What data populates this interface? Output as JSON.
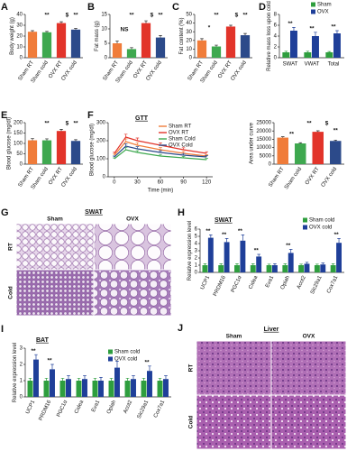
{
  "chart_data": [
    {
      "type": "bar",
      "label": "A",
      "ylabel": "Body weight (g)",
      "categories": [
        "Sham RT",
        "Sham cold",
        "OVX RT",
        "OVX cold"
      ],
      "values": [
        24,
        23.5,
        32,
        26
      ],
      "errors": [
        1,
        0.8,
        1.2,
        1
      ],
      "colors": [
        "#f07c3a",
        "#3ea84f",
        "#e2342a",
        "#2c4a8a"
      ],
      "ylim": [
        0,
        40
      ],
      "yticks": [
        0,
        10,
        20,
        30,
        40
      ],
      "annotations": [
        "**",
        "$",
        "**"
      ]
    },
    {
      "type": "bar",
      "label": "B",
      "ylabel": "Fat mass (g)",
      "categories": [
        "Sham RT",
        "Sham cold",
        "OVX RT",
        "OVX cold"
      ],
      "values": [
        5,
        3,
        12,
        7
      ],
      "errors": [
        0.8,
        0.5,
        0.8,
        0.7
      ],
      "colors": [
        "#f07c3a",
        "#3ea84f",
        "#e2342a",
        "#2c4a8a"
      ],
      "ylim": [
        0,
        15
      ],
      "yticks": [
        0,
        5,
        10,
        15
      ],
      "annotations": [
        "NS",
        "**",
        "$",
        "**"
      ]
    },
    {
      "type": "bar",
      "label": "C",
      "ylabel": "Fat content (%)",
      "categories": [
        "Sham RT",
        "Sham cold",
        "OVX RT",
        "OVX cold"
      ],
      "values": [
        20,
        13,
        36,
        26
      ],
      "errors": [
        2,
        1.5,
        1.5,
        2
      ],
      "colors": [
        "#f07c3a",
        "#3ea84f",
        "#e2342a",
        "#2c4a8a"
      ],
      "ylim": [
        0,
        50
      ],
      "yticks": [
        0,
        10,
        20,
        30,
        40,
        50
      ],
      "annotations": [
        "*",
        "**",
        "$",
        "**"
      ]
    },
    {
      "type": "grouped_bar",
      "label": "D",
      "ylabel": "Relative mass loss upon cold",
      "categories": [
        "SWAT",
        "VWAT",
        "Total"
      ],
      "series": [
        {
          "name": "Sham",
          "color": "#2e9e3e",
          "values": [
            1,
            1,
            1
          ],
          "errors": [
            0.2,
            0.2,
            0.15
          ]
        },
        {
          "name": "OVX",
          "color": "#1f3f99",
          "values": [
            5,
            4,
            4.5
          ],
          "errors": [
            0.6,
            0.7,
            0.5
          ]
        }
      ],
      "ylim": [
        0,
        8
      ],
      "yticks": [
        0,
        2,
        4,
        6,
        8
      ],
      "annotations": [
        "**",
        "**",
        "**"
      ],
      "legend": "upper right"
    },
    {
      "type": "bar",
      "label": "E",
      "ylabel": "Blood glucose (mg/dl)",
      "categories": [
        "Sham RT",
        "Sham cold",
        "OVX RT",
        "OVX cold"
      ],
      "values": [
        115,
        115,
        160,
        112
      ],
      "errors": [
        8,
        7,
        8,
        6
      ],
      "colors": [
        "#f07c3a",
        "#3ea84f",
        "#e2342a",
        "#2c4a8a"
      ],
      "ylim": [
        0,
        200
      ],
      "yticks": [
        0,
        50,
        100,
        150,
        200
      ],
      "annotations": [
        "**",
        "$",
        "**"
      ]
    },
    {
      "type": "line",
      "label": "F",
      "title": "GTT",
      "xlabel": "Time (min)",
      "ylabel": "Blood glucose (mg/dl)",
      "x": [
        0,
        15,
        30,
        60,
        90,
        120
      ],
      "xlim": [
        -8,
        128
      ],
      "xticks": [
        0,
        30,
        60,
        90,
        120
      ],
      "ylim": [
        0,
        300
      ],
      "yticks": [
        0,
        100,
        200,
        300
      ],
      "legend": "upper right",
      "series": [
        {
          "name": "Sham RT",
          "color": "#f07c3a",
          "values": [
            120,
            195,
            175,
            150,
            130,
            115
          ],
          "errors": [
            6,
            15,
            14,
            12,
            10,
            8
          ]
        },
        {
          "name": "OVX RT",
          "color": "#e2342a",
          "values": [
            130,
            220,
            200,
            175,
            150,
            130
          ],
          "errors": [
            6,
            16,
            15,
            13,
            11,
            9
          ]
        },
        {
          "name": "Sham Cold",
          "color": "#3ea84f",
          "values": [
            100,
            150,
            135,
            115,
            105,
            95
          ],
          "errors": [
            5,
            12,
            10,
            9,
            8,
            7
          ]
        },
        {
          "name": "OVX Cold",
          "color": "#2c4a8a",
          "values": [
            110,
            170,
            155,
            135,
            120,
            110
          ],
          "errors": [
            5,
            13,
            12,
            10,
            9,
            8
          ]
        }
      ]
    },
    {
      "type": "bar",
      "ylabel": "Area under curve",
      "categories": [
        "Sham RT",
        "Sham cold",
        "OVX RT",
        "OVX cold"
      ],
      "values": [
        16000,
        12500,
        19500,
        14000
      ],
      "errors": [
        500,
        400,
        600,
        500
      ],
      "colors": [
        "#f07c3a",
        "#3ea84f",
        "#e2342a",
        "#2c4a8a"
      ],
      "ylim": [
        0,
        25000
      ],
      "yticks": [
        0,
        5000,
        10000,
        15000,
        20000,
        25000
      ],
      "annotations": [
        "**",
        "**",
        "$",
        "**"
      ]
    },
    {
      "type": "grouped_bar",
      "label": "H",
      "title": "SWAT",
      "ylabel": "Relative expression level",
      "categories": [
        "UCP1",
        "PRDM16",
        "PGC1α",
        "Cidea",
        "Eva1",
        "Oplah",
        "Acot2",
        "Slc29a1",
        "Cox7a1"
      ],
      "series": [
        {
          "name": "Sham cold",
          "color": "#2e9e3e",
          "values": [
            1,
            1,
            1,
            1,
            1,
            1,
            1,
            1,
            1
          ],
          "errors": [
            0.2,
            0.2,
            0.2,
            0.2,
            0.15,
            0.2,
            0.15,
            0.15,
            0.2
          ]
        },
        {
          "name": "OVX cold",
          "color": "#1f3f99",
          "values": [
            4.8,
            4.2,
            4.4,
            2.2,
            1,
            2.7,
            1.2,
            1.1,
            4.1
          ],
          "errors": [
            0.4,
            0.5,
            0.8,
            0.3,
            0.2,
            0.5,
            0.2,
            0.2,
            0.6
          ]
        }
      ],
      "ylim": [
        0,
        6
      ],
      "yticks": [
        0,
        1,
        2,
        3,
        4,
        5,
        6
      ],
      "annotations": [
        "**",
        "**",
        "**",
        "**",
        "**",
        "**"
      ],
      "legend": "upper right"
    },
    {
      "type": "grouped_bar",
      "label": "I",
      "title": "BAT",
      "ylabel": "Relative expression level",
      "categories": [
        "UCP1",
        "PRDM16",
        "PGC1α",
        "Cidea",
        "Eva1",
        "Oplah",
        "Acot2",
        "Slc29a1",
        "Cox7a1"
      ],
      "series": [
        {
          "name": "Sham cold",
          "color": "#2e9e3e",
          "values": [
            1,
            1,
            1,
            1,
            1,
            1,
            1,
            1,
            1
          ],
          "errors": [
            0.15,
            0.15,
            0.15,
            0.15,
            0.15,
            0.15,
            0.15,
            0.15,
            0.15
          ]
        },
        {
          "name": "OVX cold",
          "color": "#1f3f99",
          "values": [
            2.3,
            1.7,
            1.1,
            1.1,
            1,
            1.8,
            1.1,
            1.6,
            1.1
          ],
          "errors": [
            0.3,
            0.3,
            0.2,
            0.2,
            0.2,
            0.4,
            0.2,
            0.3,
            0.2
          ]
        }
      ],
      "ylim": [
        0,
        3
      ],
      "yticks": [
        0,
        1,
        2,
        3
      ],
      "annotations": [
        "**",
        "**",
        "**"
      ],
      "legend": "upper right"
    }
  ],
  "image_panels": [
    {
      "label": "G",
      "title": "SWAT",
      "columns": [
        "Sham",
        "OVX"
      ],
      "rows": [
        "RT",
        "Cold"
      ]
    },
    {
      "label": "J",
      "title": "Liver",
      "columns": [
        "Sham",
        "OVX"
      ],
      "rows": [
        "RT",
        "Cold"
      ]
    }
  ]
}
